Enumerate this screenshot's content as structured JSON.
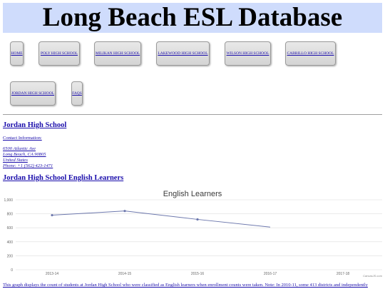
{
  "header": {
    "title": "Long Beach ESL Database"
  },
  "nav": {
    "items": [
      {
        "id": "home",
        "label": "HOME"
      },
      {
        "id": "poly",
        "label": "POLY HIGH SCHOOL"
      },
      {
        "id": "millikan",
        "label": "MILIKAN HIGH SCHOOL"
      },
      {
        "id": "lakewood",
        "label": "LAKEWOOD HIGH SCHOOL"
      },
      {
        "id": "wilson",
        "label": "WILSON HIGH SCHOOL"
      },
      {
        "id": "cabrillo",
        "label": "CABRILLO HIGH SCHOOL"
      },
      {
        "id": "jordan",
        "label": "JORDAN HIGH SCHOOL"
      },
      {
        "id": "faqs",
        "label": "FAQS"
      }
    ]
  },
  "school": {
    "name": "Jordan High School",
    "contact_label": "Contact Information:",
    "address_line1": "6500 Atlantic Ave",
    "address_line2": "Long Beach, CA 90805",
    "country": "United States",
    "phone": "Phone:  +1 (562) 423-1471"
  },
  "section": {
    "title": "Jordan High School English Learners"
  },
  "chart_data": {
    "type": "line",
    "title": "English Learners",
    "categories": [
      "2013-14",
      "2014-15",
      "2015-16",
      "2016-17",
      "2017-18"
    ],
    "series": [
      {
        "values": [
          780,
          840,
          720,
          610,
          null
        ]
      }
    ],
    "yticks": [
      0,
      200,
      400,
      600,
      800,
      "1,000"
    ],
    "ylim": [
      0,
      1000
    ],
    "grid": true,
    "credit": "CanvasJS.com",
    "line_color": "#6d78ad"
  },
  "caption": "This graph displays the count of students at Jordan High School who were classified as English learners when enrollment counts were taken. Note: In 2010-11, some 413 districts and independently"
}
